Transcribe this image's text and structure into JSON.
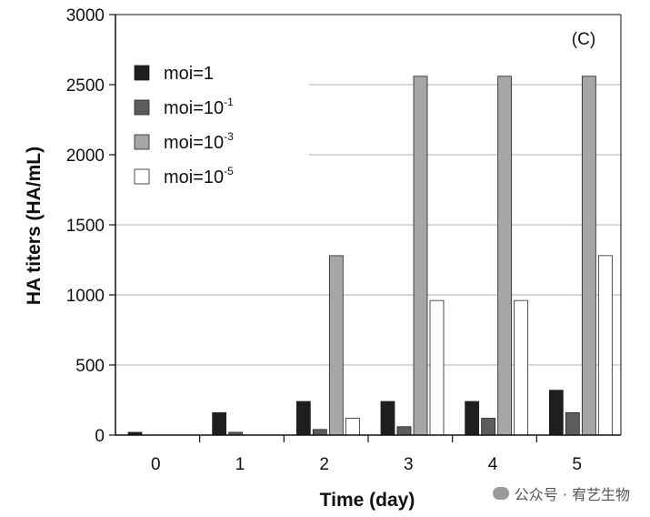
{
  "chart_data": {
    "type": "bar",
    "panel_label": "(C)",
    "xlabel": "Time (day)",
    "ylabel": "HA titers (HA/mL)",
    "ylim": [
      0,
      3000
    ],
    "yticks": [
      "0",
      "500",
      "1000",
      "1500",
      "2000",
      "2500",
      "3000"
    ],
    "categories": [
      "0",
      "1",
      "2",
      "3",
      "4",
      "5"
    ],
    "grid": "horizontal",
    "legend_position": "top-left",
    "series": [
      {
        "name": "moi=1",
        "label_base": "moi=1",
        "label_exp": "",
        "color": "#1e1e1e",
        "values": [
          20,
          160,
          240,
          240,
          240,
          320
        ]
      },
      {
        "name": "moi=10-1",
        "label_base": "moi=10",
        "label_exp": "-1",
        "color": "#5c5c5c",
        "values": [
          0,
          20,
          40,
          60,
          120,
          160
        ]
      },
      {
        "name": "moi=10-3",
        "label_base": "moi=10",
        "label_exp": "-3",
        "color": "#a6a6a6",
        "values": [
          0,
          0,
          1280,
          2560,
          2560,
          2560
        ]
      },
      {
        "name": "moi=10-5",
        "label_base": "moi=10",
        "label_exp": "-5",
        "color": "#ffffff",
        "values": [
          0,
          0,
          120,
          960,
          960,
          1280
        ]
      }
    ]
  },
  "watermark": "公众号 · 宥艺生物"
}
